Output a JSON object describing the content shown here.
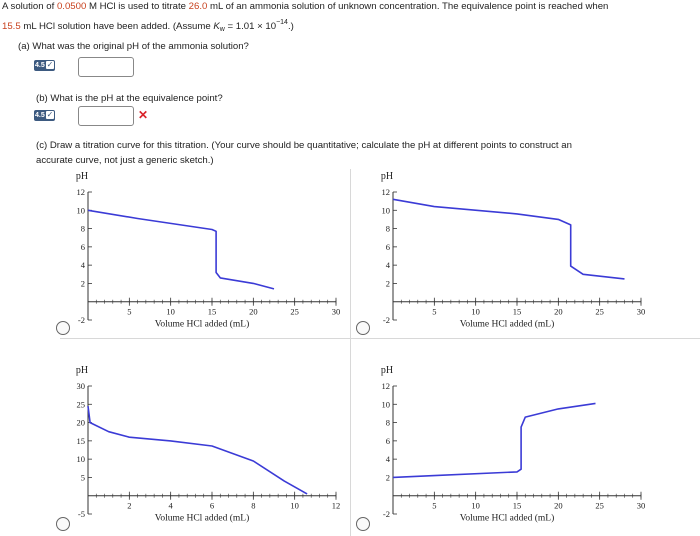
{
  "question": {
    "intro_1": "A solution of ",
    "conc": "0.0500",
    "intro_2": " M HCl is used to titrate ",
    "vol": "26.0",
    "intro_3": " mL of an ammonia solution of unknown concentration. The equivalence point is reached when",
    "line2_vol": "15.5",
    "line2_text": " mL HCl solution have been added. (Assume ",
    "kw_symbol": "K",
    "kw_sub": "w",
    "kw_value": " = 1.01 × 10",
    "kw_exp": "−14",
    "line2_end": ".)"
  },
  "part_a": {
    "prompt": "(a) What was the original pH of the ammonia solution?",
    "hint_label": "4.5",
    "answer": ""
  },
  "part_b": {
    "prompt": "(b) What is the pH at the equivalence point?",
    "hint_label": "4.5",
    "answer": ""
  },
  "part_c": {
    "prompt_1": "(c) Draw a titration curve for this titration. (Your curve should be quantitative; calculate the pH at different points to construct an",
    "prompt_2": "accurate curve, not just a generic sketch.)"
  },
  "colors": {
    "curve": "#3b3bd6",
    "accent_red": "#c8411e",
    "wrong": "#d9232a",
    "hint_bg": "#3d5a80"
  },
  "chart_data": [
    {
      "type": "line",
      "position": "top-left",
      "ylabel": "pH",
      "xlabel": "Volume HCl added (mL)",
      "y_ticks": [
        12,
        10,
        8,
        6,
        4,
        2,
        -2
      ],
      "x_ticks": [
        5,
        10,
        15,
        20,
        25,
        30
      ],
      "xlim": [
        0,
        30
      ],
      "ylim": [
        -2,
        12
      ],
      "series": [
        {
          "x": [
            0,
            6,
            15,
            15.5,
            15.5,
            16,
            20,
            22.5
          ],
          "y": [
            10,
            9.1,
            7.9,
            7.7,
            3.2,
            2.6,
            2.0,
            1.4
          ]
        }
      ]
    },
    {
      "type": "line",
      "position": "top-right",
      "ylabel": "pH",
      "xlabel": "Volume HCl added (mL)",
      "y_ticks": [
        12,
        10,
        8,
        6,
        4,
        2,
        -2
      ],
      "x_ticks": [
        5,
        10,
        15,
        20,
        25,
        30
      ],
      "xlim": [
        0,
        30
      ],
      "ylim": [
        -2,
        12
      ],
      "series": [
        {
          "x": [
            0,
            5,
            15,
            20,
            21.5,
            21.5,
            23,
            28
          ],
          "y": [
            11.2,
            10.4,
            9.6,
            9.0,
            8.4,
            3.9,
            3.0,
            2.5
          ]
        }
      ]
    },
    {
      "type": "line",
      "position": "bottom-left",
      "ylabel": "pH",
      "xlabel": "Volume HCl added (mL)",
      "y_ticks": [
        30,
        25,
        20,
        15,
        10,
        5,
        -5
      ],
      "x_ticks": [
        2,
        4,
        6,
        8,
        10,
        12
      ],
      "xlim": [
        0,
        12
      ],
      "ylim": [
        -5,
        30
      ],
      "series": [
        {
          "x": [
            0,
            0.1,
            1,
            2,
            4,
            6,
            8,
            9.5,
            10.6
          ],
          "y": [
            24.5,
            20.0,
            17.5,
            16.0,
            15.0,
            13.6,
            9.5,
            4.0,
            0.5
          ]
        }
      ]
    },
    {
      "type": "line",
      "position": "bottom-right",
      "ylabel": "pH",
      "xlabel": "Volume HCl added (mL)",
      "y_ticks": [
        12,
        10,
        8,
        6,
        4,
        2,
        -2
      ],
      "x_ticks": [
        5,
        10,
        15,
        20,
        25,
        30
      ],
      "xlim": [
        0,
        30
      ],
      "ylim": [
        -2,
        12
      ],
      "series": [
        {
          "x": [
            0,
            5,
            15,
            15.5,
            15.5,
            16,
            20,
            24.5
          ],
          "y": [
            2.0,
            2.2,
            2.6,
            2.9,
            7.5,
            8.6,
            9.5,
            10.1
          ]
        }
      ]
    }
  ]
}
